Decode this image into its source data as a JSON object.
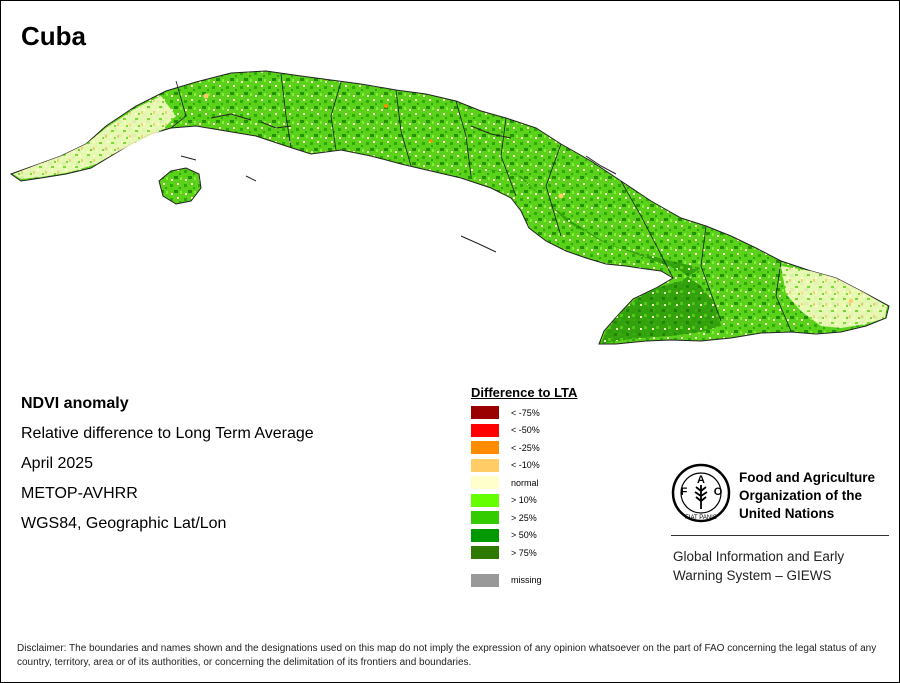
{
  "title": "Cuba",
  "info": {
    "product": "NDVI anomaly",
    "description": "Relative difference to Long Term Average",
    "date": "April 2025",
    "sensor": "METOP-AVHRR",
    "projection": "WGS84, Geographic Lat/Lon"
  },
  "legend": {
    "title": "Difference to LTA",
    "items": [
      {
        "label": "< -75%",
        "color": "#9b0000"
      },
      {
        "label": "< -50%",
        "color": "#ff0000"
      },
      {
        "label": "< -25%",
        "color": "#ff8c00"
      },
      {
        "label": "< -10%",
        "color": "#ffcc66"
      },
      {
        "label": "normal",
        "color": "#ffffcc"
      },
      {
        "label": "> 10%",
        "color": "#66ff00"
      },
      {
        "label": "> 25%",
        "color": "#33cc00"
      },
      {
        "label": "> 50%",
        "color": "#009900"
      },
      {
        "label": "> 75%",
        "color": "#2e7a00"
      }
    ],
    "missing": {
      "label": "missing",
      "color": "#999999"
    }
  },
  "fao": {
    "emblem_letters": "FAO",
    "emblem_motto": "FIAT PANIS",
    "name_lines": [
      "Food and Agriculture",
      "Organization of the",
      "United Nations"
    ],
    "giews_lines": [
      "Global Information and Early",
      "Warning System – GIEWS"
    ]
  },
  "disclaimer": "Disclaimer: The boundaries and names shown and the designations used on this map do not imply the expression of any opinion whatsoever on the part of FAO concerning the legal status of any country, territory, area or of its authorities, or concerning the delimitation of its frontiers and boundaries."
}
